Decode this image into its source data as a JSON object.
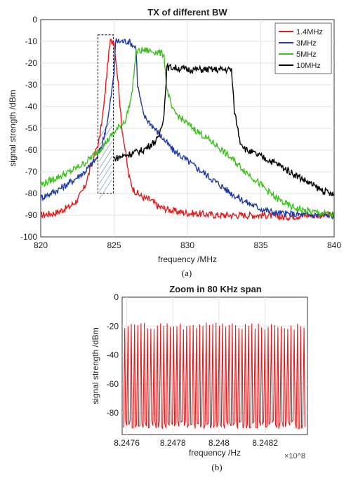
{
  "captions": {
    "a": "(a)",
    "b": "(b)"
  },
  "chart_data": [
    {
      "type": "line",
      "title": "TX of different BW",
      "xlabel": "frequency /MHz",
      "ylabel": "signal strength /dBm",
      "xlim": [
        820,
        840
      ],
      "ylim": [
        -100,
        0
      ],
      "xticks": [
        "820",
        "825",
        "830",
        "835",
        "840"
      ],
      "yticks": [
        "0",
        "-10",
        "-20",
        "-30",
        "-40",
        "-50",
        "-60",
        "-70",
        "-80",
        "-90",
        "-100"
      ],
      "grid": true,
      "legend_position": "top-right",
      "annotation": "dashed box over 823.9–824.9 MHz, -80 to -7 dBm",
      "series": [
        {
          "name": "1.4MHz",
          "color": "#e31a1c",
          "x": [
            820,
            821,
            822,
            822.5,
            823,
            823.5,
            824,
            824.3,
            824.6,
            824.75,
            825,
            825.3,
            825.5,
            825.8,
            826,
            826.3,
            826.6,
            827,
            827.5,
            828,
            829,
            830,
            832,
            834,
            835.5,
            836.5,
            838,
            840
          ],
          "y": [
            -90,
            -89,
            -86,
            -83,
            -77,
            -66,
            -55,
            -40,
            -18,
            -10,
            -10,
            -30,
            -48,
            -62,
            -72,
            -78,
            -80,
            -82,
            -83,
            -86,
            -88,
            -89,
            -90,
            -90,
            -90,
            -91,
            -90,
            -90
          ]
        },
        {
          "name": "3MHz",
          "color": "#1f3aa3",
          "x": [
            820,
            821,
            822,
            823,
            823.8,
            824.2,
            824.6,
            825,
            825.1,
            825.3,
            826,
            826.5,
            826.6,
            827,
            828,
            829,
            830,
            831,
            832,
            833,
            834,
            835,
            836,
            838,
            840
          ],
          "y": [
            -82,
            -79,
            -75,
            -70,
            -64,
            -57,
            -45,
            -25,
            -10,
            -10,
            -10,
            -13,
            -30,
            -44,
            -52,
            -60,
            -65,
            -70,
            -75,
            -80,
            -84,
            -87,
            -89,
            -90,
            -90
          ]
        },
        {
          "name": "5MHz",
          "color": "#3fbf1f",
          "x": [
            820,
            821,
            822,
            823,
            824,
            825,
            825.8,
            826.2,
            826.5,
            827,
            828,
            828.4,
            828.6,
            829,
            830,
            831,
            832,
            833,
            834,
            835,
            836,
            837,
            838,
            840
          ],
          "y": [
            -76,
            -73,
            -70,
            -66,
            -60,
            -52,
            -46,
            -35,
            -15,
            -14,
            -15,
            -16,
            -32,
            -42,
            -48,
            -53,
            -58,
            -64,
            -70,
            -76,
            -82,
            -86,
            -88,
            -90
          ]
        },
        {
          "name": "10MHz",
          "color": "#000000",
          "x": [
            825,
            826,
            827,
            828,
            828.4,
            828.6,
            829,
            830,
            831,
            832,
            833,
            833.2,
            833.6,
            834,
            835,
            836,
            837,
            838,
            839,
            840
          ],
          "y": [
            -64,
            -62,
            -60,
            -55,
            -44,
            -22,
            -22,
            -23,
            -23,
            -23,
            -23,
            -42,
            -56,
            -60,
            -63,
            -66,
            -70,
            -74,
            -78,
            -81
          ]
        }
      ]
    },
    {
      "type": "line",
      "title": "Zoom in 80 KHz span",
      "xlabel": "frequency /Hz",
      "ylabel": "signal strength /dBm",
      "x_exponent": "×10^8",
      "xlim": [
        824.758,
        824.8384
      ],
      "ylim": [
        -95,
        0
      ],
      "xticks": [
        "8.2476",
        "8.2478",
        "8.248",
        "8.2482"
      ],
      "xtick_values": [
        824.76,
        824.78,
        824.8,
        824.82
      ],
      "yticks": [
        "0",
        "-20",
        "-40",
        "-60",
        "-80"
      ],
      "grid": true,
      "series": [
        {
          "name": "",
          "color": "#e31a1c",
          "description_values": {
            "peak_dbm": -20,
            "floor_dbm": -88,
            "approx_peaks": 56
          }
        }
      ]
    }
  ]
}
